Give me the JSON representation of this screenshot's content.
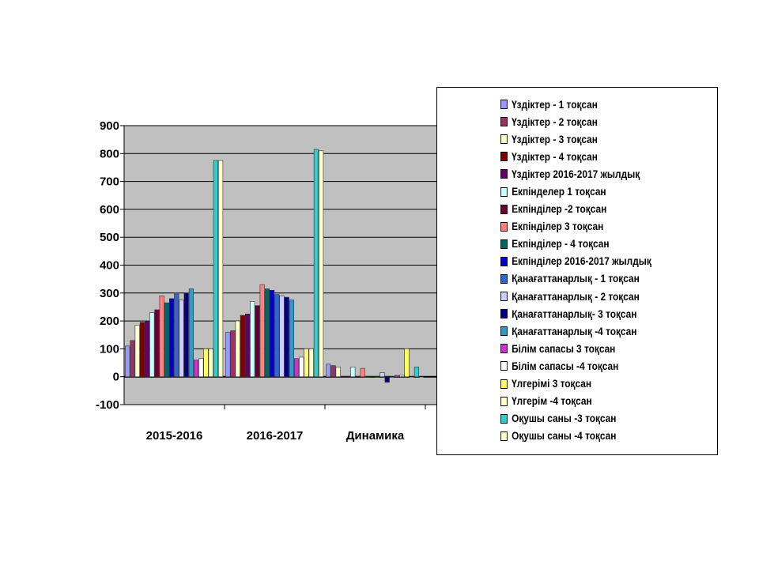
{
  "chart_data": {
    "type": "bar",
    "categories": [
      "2015-2016",
      "2016-2017",
      "Динамика",
      ""
    ],
    "y_ticks": [
      "900",
      "800",
      "700",
      "600",
      "500",
      "400",
      "300",
      "200",
      "100",
      "0",
      "-100"
    ],
    "ylim": [
      -100,
      900
    ],
    "grid": true,
    "legend_position": "right",
    "series": [
      {
        "name": "Үздіктер - 1 тоқсан",
        "color": "#9999ff",
        "values": [
          110,
          160,
          45,
          null
        ]
      },
      {
        "name": "Үздіктер - 2  тоқсан",
        "color": "#993366",
        "values": [
          130,
          165,
          40,
          null
        ]
      },
      {
        "name": "Үздіктер - 3 тоқсан",
        "color": "#ffffcc",
        "values": [
          185,
          200,
          35,
          null
        ]
      },
      {
        "name": "Үздіктер - 4 тоқсан",
        "color": "#800000",
        "values": [
          195,
          220,
          0,
          null
        ]
      },
      {
        "name": "Үздіктер 2016-2017 жылдық",
        "color": "#660066",
        "values": [
          200,
          225,
          0,
          null
        ]
      },
      {
        "name": "Екпінделер 1 тоқсан",
        "color": "#ccffff",
        "values": [
          230,
          270,
          35,
          null
        ]
      },
      {
        "name": "Екпінділер -2 тоқсан",
        "color": "#660033",
        "values": [
          240,
          255,
          0,
          null
        ]
      },
      {
        "name": "Екпінділер 3 тоқсан",
        "color": "#ff8080",
        "values": [
          290,
          330,
          30,
          null
        ]
      },
      {
        "name": "Екпінділер - 4 тоқсан",
        "color": "#006666",
        "values": [
          265,
          315,
          0,
          null
        ]
      },
      {
        "name": "Екпінділер 2016-2017 жылдық",
        "color": "#0000cc",
        "values": [
          280,
          310,
          0,
          null
        ]
      },
      {
        "name": "Қанағаттанарлық - 1 тоқсан",
        "color": "#3366cc",
        "values": [
          300,
          295,
          0,
          null
        ]
      },
      {
        "name": "Қанағаттанарлық - 2 тоқсан",
        "color": "#ccccff",
        "values": [
          275,
          290,
          15,
          null
        ]
      },
      {
        "name": "Қанағаттанарлық- 3 тоқсан",
        "color": "#000080",
        "values": [
          300,
          285,
          -20,
          null
        ]
      },
      {
        "name": "Қанағаттанарлық -4 тоқсан",
        "color": "#3399cc",
        "values": [
          315,
          275,
          0,
          null
        ]
      },
      {
        "name": "Білім сапасы 3 тоқсан",
        "color": "#cc33cc",
        "values": [
          60,
          65,
          5,
          null
        ]
      },
      {
        "name": "Білім сапасы -4 тоқсан",
        "color": "#ffffff",
        "values": [
          65,
          70,
          5,
          null
        ]
      },
      {
        "name": "Үлгерімі  3 тоқсан",
        "color": "#ffff66",
        "values": [
          100,
          100,
          100,
          null
        ]
      },
      {
        "name": "Үлгерім -4 тоқсан",
        "color": "#ffffcc",
        "values": [
          100,
          100,
          0,
          null
        ]
      },
      {
        "name": "Оқушы саны -3 тоқсан",
        "color": "#33cccc",
        "values": [
          775,
          815,
          35,
          null
        ]
      },
      {
        "name": "Оқушы саны -4 тоқсан",
        "color": "#ffffcc",
        "values": [
          775,
          810,
          0,
          null
        ]
      }
    ]
  }
}
